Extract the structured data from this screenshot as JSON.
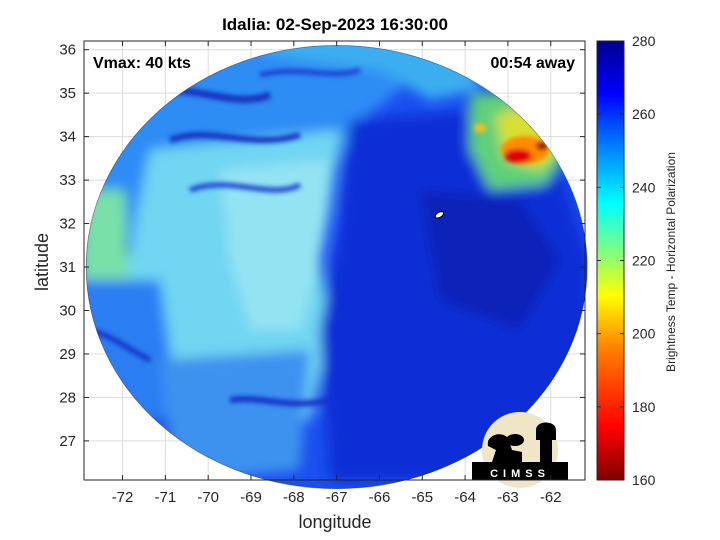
{
  "chart_data": {
    "type": "heatmap",
    "title": "Idalia: 02-Sep-2023 16:30:00",
    "xlabel": "longitude",
    "ylabel": "latitude",
    "xlim": [
      -72.9,
      -61.2
    ],
    "ylim": [
      26.1,
      36.2
    ],
    "x_ticks": [
      -72,
      -71,
      -70,
      -69,
      -68,
      -67,
      -66,
      -65,
      -64,
      -63,
      -62
    ],
    "y_ticks": [
      27,
      28,
      29,
      30,
      31,
      32,
      33,
      34,
      35,
      36
    ],
    "grid": true,
    "annotations": {
      "vmax": "Vmax: 40 kts",
      "time_away": "00:54 away"
    },
    "colorbar": {
      "label": "Brightness Temp - Horizontal Polarization",
      "range": [
        160,
        280
      ],
      "ticks": [
        160,
        180,
        200,
        220,
        240,
        260,
        280
      ],
      "colormap": [
        "#7f0000",
        "#ff0000",
        "#ff8000",
        "#ffff00",
        "#80ff80",
        "#00ffff",
        "#0080ff",
        "#0000ff",
        "#00008f"
      ]
    },
    "swath": {
      "center_lon": -67.0,
      "center_lat": 31.0,
      "radius_lon": 5.85,
      "radius_lat": 5.1
    },
    "regions_brightness_temp": [
      {
        "area": "northwest",
        "value": 250
      },
      {
        "area": "west-central",
        "value": 238
      },
      {
        "area": "far-west edge",
        "value": 228
      },
      {
        "area": "east-central",
        "value": 266
      },
      {
        "area": "southeast",
        "value": 264
      },
      {
        "area": "northeast warm patch",
        "value": 225
      },
      {
        "area": "northeast core",
        "value": 178
      }
    ],
    "storm_center": {
      "lon": -64.6,
      "lat": 32.2
    }
  },
  "logo": {
    "text": "CIMSS"
  },
  "colors": {
    "background": "#ffffff",
    "axes_frame": "#262626",
    "grid": "#dcdcdc"
  }
}
